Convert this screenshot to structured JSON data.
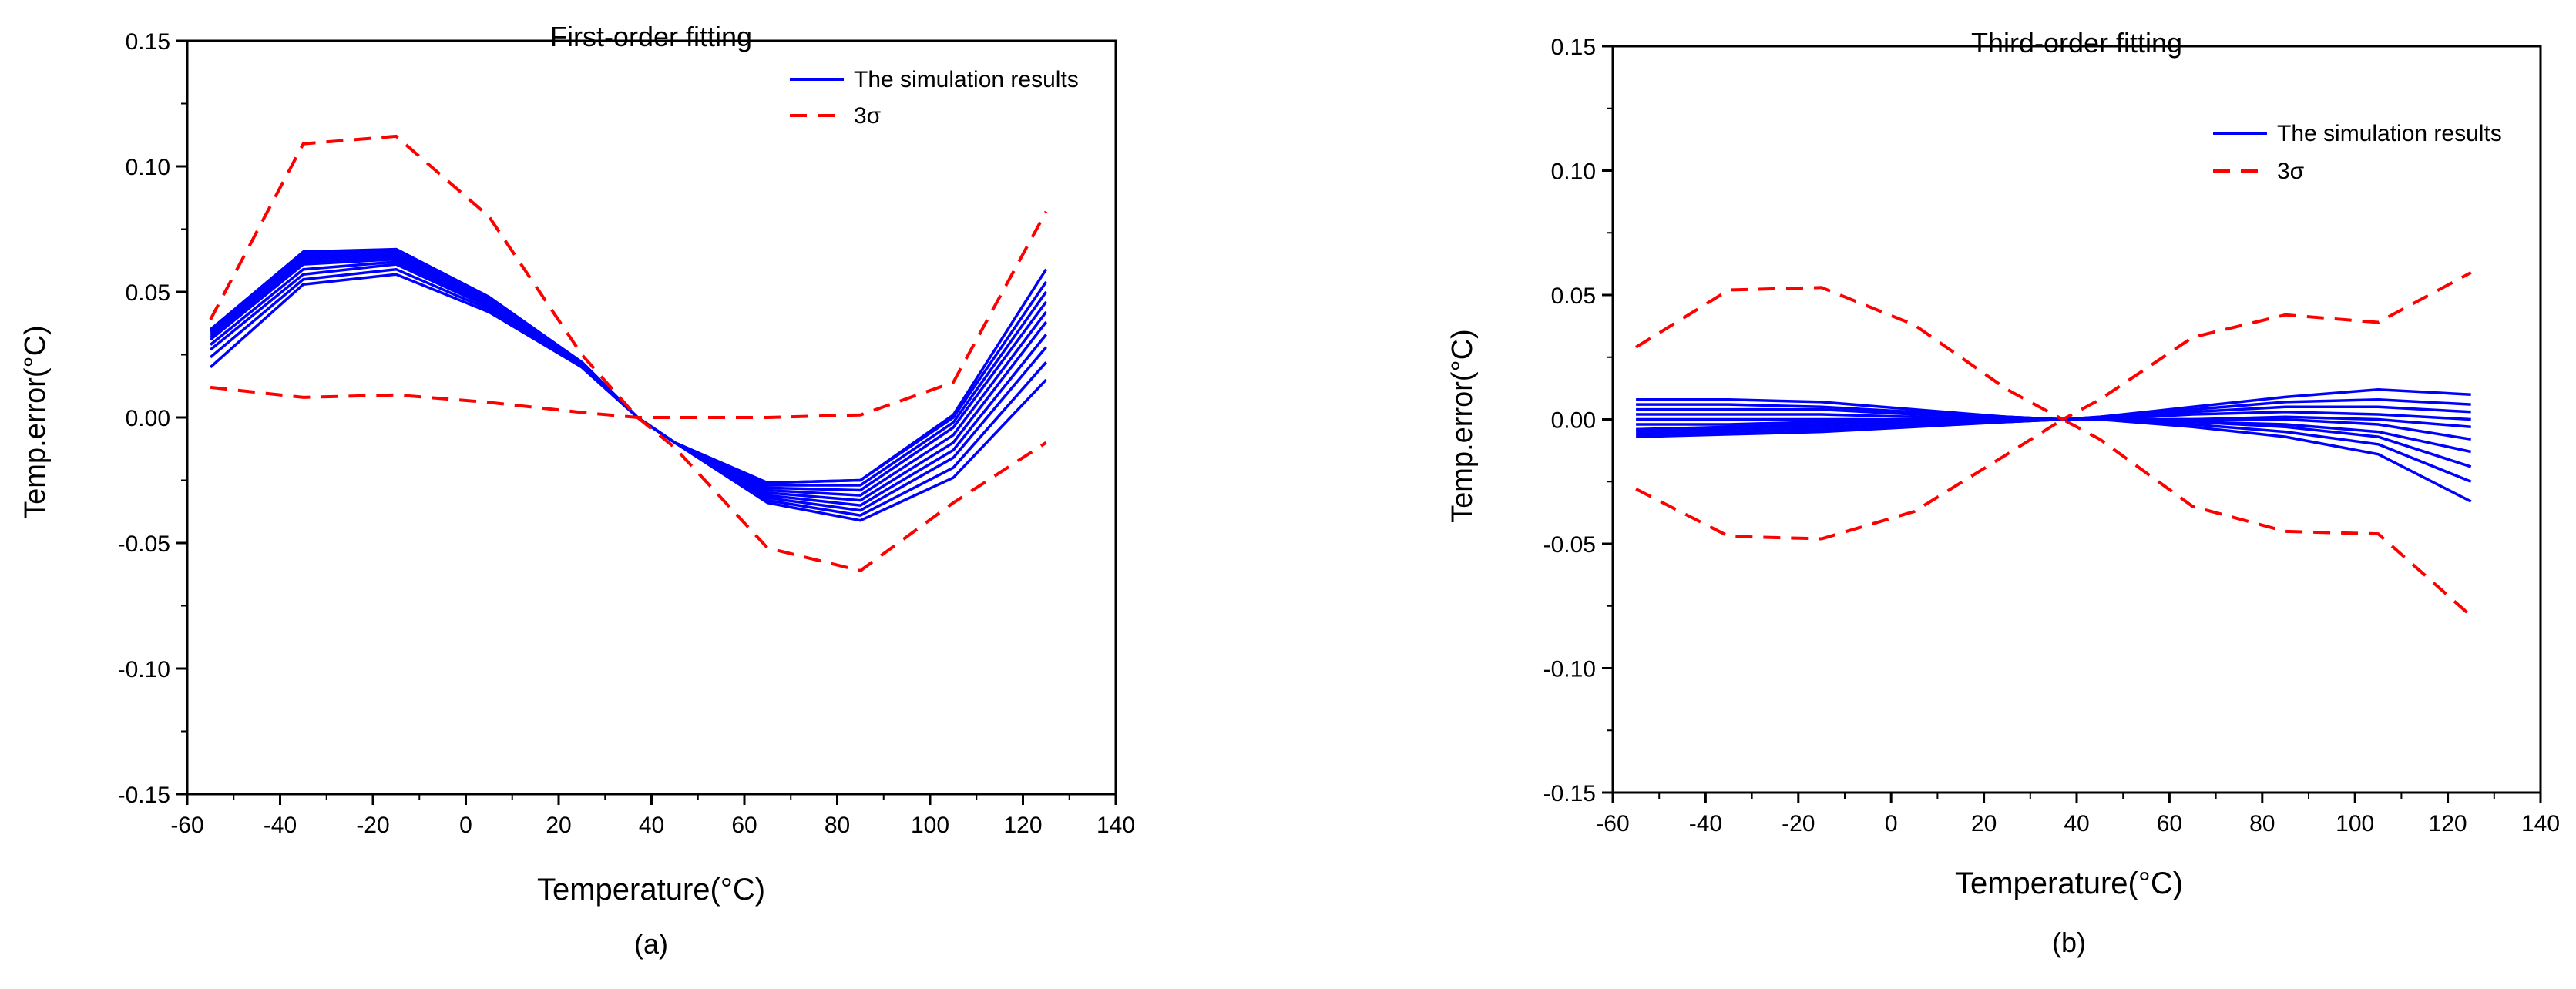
{
  "chart_data": [
    {
      "type": "line",
      "title": "First-order fitting",
      "xlabel": "Temperature(°C)",
      "ylabel": "Temp.error(°C)",
      "panel_label": "(a)",
      "xlim": [
        -60,
        140
      ],
      "ylim": [
        -0.15,
        0.15
      ],
      "xticks": [
        -60,
        -40,
        -20,
        0,
        20,
        40,
        60,
        80,
        100,
        120,
        140
      ],
      "yticks": [
        -0.15,
        -0.1,
        -0.05,
        0.0,
        0.05,
        0.1,
        0.15
      ],
      "ytick_labels": [
        "-0.15",
        "-0.10",
        "-0.05",
        "0.00",
        "0.05",
        "0.10",
        "0.15"
      ],
      "legend": [
        "The simulation results",
        "3σ"
      ],
      "legend_position": "top-right",
      "x": [
        -55,
        -35,
        -15,
        5,
        25,
        37,
        45,
        65,
        85,
        105,
        125
      ],
      "simulation_series": [
        {
          "values": [
            0.02,
            0.053,
            0.057,
            0.042,
            0.02,
            0.0,
            -0.01,
            -0.034,
            -0.041,
            -0.024,
            0.015
          ]
        },
        {
          "values": [
            0.024,
            0.055,
            0.059,
            0.043,
            0.02,
            0.0,
            -0.01,
            -0.033,
            -0.039,
            -0.02,
            0.022
          ]
        },
        {
          "values": [
            0.027,
            0.057,
            0.061,
            0.044,
            0.021,
            0.0,
            -0.01,
            -0.032,
            -0.037,
            -0.016,
            0.028
          ]
        },
        {
          "values": [
            0.029,
            0.059,
            0.062,
            0.045,
            0.021,
            0.0,
            -0.01,
            -0.031,
            -0.035,
            -0.013,
            0.033
          ]
        },
        {
          "values": [
            0.031,
            0.061,
            0.063,
            0.046,
            0.021,
            0.0,
            -0.01,
            -0.03,
            -0.033,
            -0.01,
            0.038
          ]
        },
        {
          "values": [
            0.032,
            0.062,
            0.064,
            0.046,
            0.022,
            0.0,
            -0.01,
            -0.029,
            -0.031,
            -0.007,
            0.042
          ]
        },
        {
          "values": [
            0.033,
            0.063,
            0.065,
            0.047,
            0.022,
            0.0,
            -0.01,
            -0.028,
            -0.029,
            -0.004,
            0.046
          ]
        },
        {
          "values": [
            0.034,
            0.064,
            0.066,
            0.047,
            0.022,
            0.0,
            -0.01,
            -0.027,
            -0.027,
            -0.002,
            0.05
          ]
        },
        {
          "values": [
            0.035,
            0.065,
            0.067,
            0.048,
            0.022,
            0.0,
            -0.01,
            -0.026,
            -0.025,
            0.0,
            0.054
          ]
        },
        {
          "values": [
            0.035,
            0.066,
            0.067,
            0.048,
            0.022,
            0.0,
            -0.01,
            -0.026,
            -0.025,
            0.001,
            0.059
          ]
        }
      ],
      "sigma_upper": [
        0.039,
        0.109,
        0.112,
        0.08,
        0.025,
        0.0,
        -0.012,
        -0.052,
        -0.061,
        -0.034,
        -0.01
      ],
      "sigma_lower": [
        0.012,
        0.008,
        0.009,
        0.006,
        0.002,
        0.0,
        0.0,
        0.0,
        0.001,
        0.014,
        0.082
      ]
    },
    {
      "type": "line",
      "title": "Third-order fitting",
      "xlabel": "Temperature(°C)",
      "ylabel": "Temp.error(°C)",
      "panel_label": "(b)",
      "xlim": [
        -60,
        140
      ],
      "ylim": [
        -0.15,
        0.15
      ],
      "xticks": [
        -60,
        -40,
        -20,
        0,
        20,
        40,
        60,
        80,
        100,
        120,
        140
      ],
      "yticks": [
        -0.15,
        -0.1,
        -0.05,
        0.0,
        0.05,
        0.1,
        0.15
      ],
      "ytick_labels": [
        "-0.15",
        "-0.10",
        "-0.05",
        "0.00",
        "0.05",
        "0.10",
        "0.15"
      ],
      "legend": [
        "The simulation results",
        "3σ"
      ],
      "legend_position": "top-right",
      "x": [
        -55,
        -35,
        -15,
        5,
        25,
        37,
        45,
        65,
        85,
        105,
        125
      ],
      "simulation_series": [
        {
          "values": [
            0.008,
            0.008,
            0.007,
            0.004,
            0.001,
            0.0,
            0.001,
            0.005,
            0.009,
            0.012,
            0.01
          ]
        },
        {
          "values": [
            0.006,
            0.006,
            0.005,
            0.003,
            0.001,
            0.0,
            0.001,
            0.004,
            0.007,
            0.008,
            0.006
          ]
        },
        {
          "values": [
            0.004,
            0.004,
            0.004,
            0.002,
            0.001,
            0.0,
            0.0,
            0.003,
            0.005,
            0.005,
            0.003
          ]
        },
        {
          "values": [
            0.002,
            0.002,
            0.002,
            0.001,
            0.0,
            0.0,
            0.0,
            0.002,
            0.003,
            0.002,
            0.0
          ]
        },
        {
          "values": [
            0.0,
            0.0,
            0.0,
            0.0,
            0.0,
            0.0,
            0.0,
            0.0,
            0.001,
            0.0,
            -0.003
          ]
        },
        {
          "values": [
            -0.002,
            -0.002,
            -0.001,
            -0.001,
            0.0,
            0.0,
            0.0,
            0.0,
            0.0,
            -0.002,
            -0.008
          ]
        },
        {
          "values": [
            -0.004,
            -0.003,
            -0.002,
            -0.001,
            0.0,
            0.0,
            0.0,
            -0.001,
            -0.002,
            -0.005,
            -0.013
          ]
        },
        {
          "values": [
            -0.005,
            -0.004,
            -0.003,
            -0.002,
            -0.001,
            0.0,
            0.0,
            -0.001,
            -0.003,
            -0.007,
            -0.019
          ]
        },
        {
          "values": [
            -0.006,
            -0.005,
            -0.004,
            -0.002,
            -0.001,
            0.0,
            0.0,
            -0.002,
            -0.005,
            -0.01,
            -0.025
          ]
        },
        {
          "values": [
            -0.007,
            -0.006,
            -0.005,
            -0.003,
            -0.001,
            0.0,
            0.0,
            -0.003,
            -0.007,
            -0.014,
            -0.033
          ]
        }
      ],
      "sigma_upper": [
        0.029,
        0.052,
        0.053,
        0.038,
        0.012,
        0.0,
        0.008,
        0.033,
        0.042,
        0.039,
        0.059
      ],
      "sigma_lower": [
        -0.028,
        -0.047,
        -0.048,
        -0.037,
        -0.014,
        0.0,
        -0.008,
        -0.035,
        -0.045,
        -0.046,
        -0.079
      ]
    }
  ],
  "colors": {
    "simulation": "#0000ff",
    "sigma": "#ff0000",
    "axis": "#000000"
  }
}
